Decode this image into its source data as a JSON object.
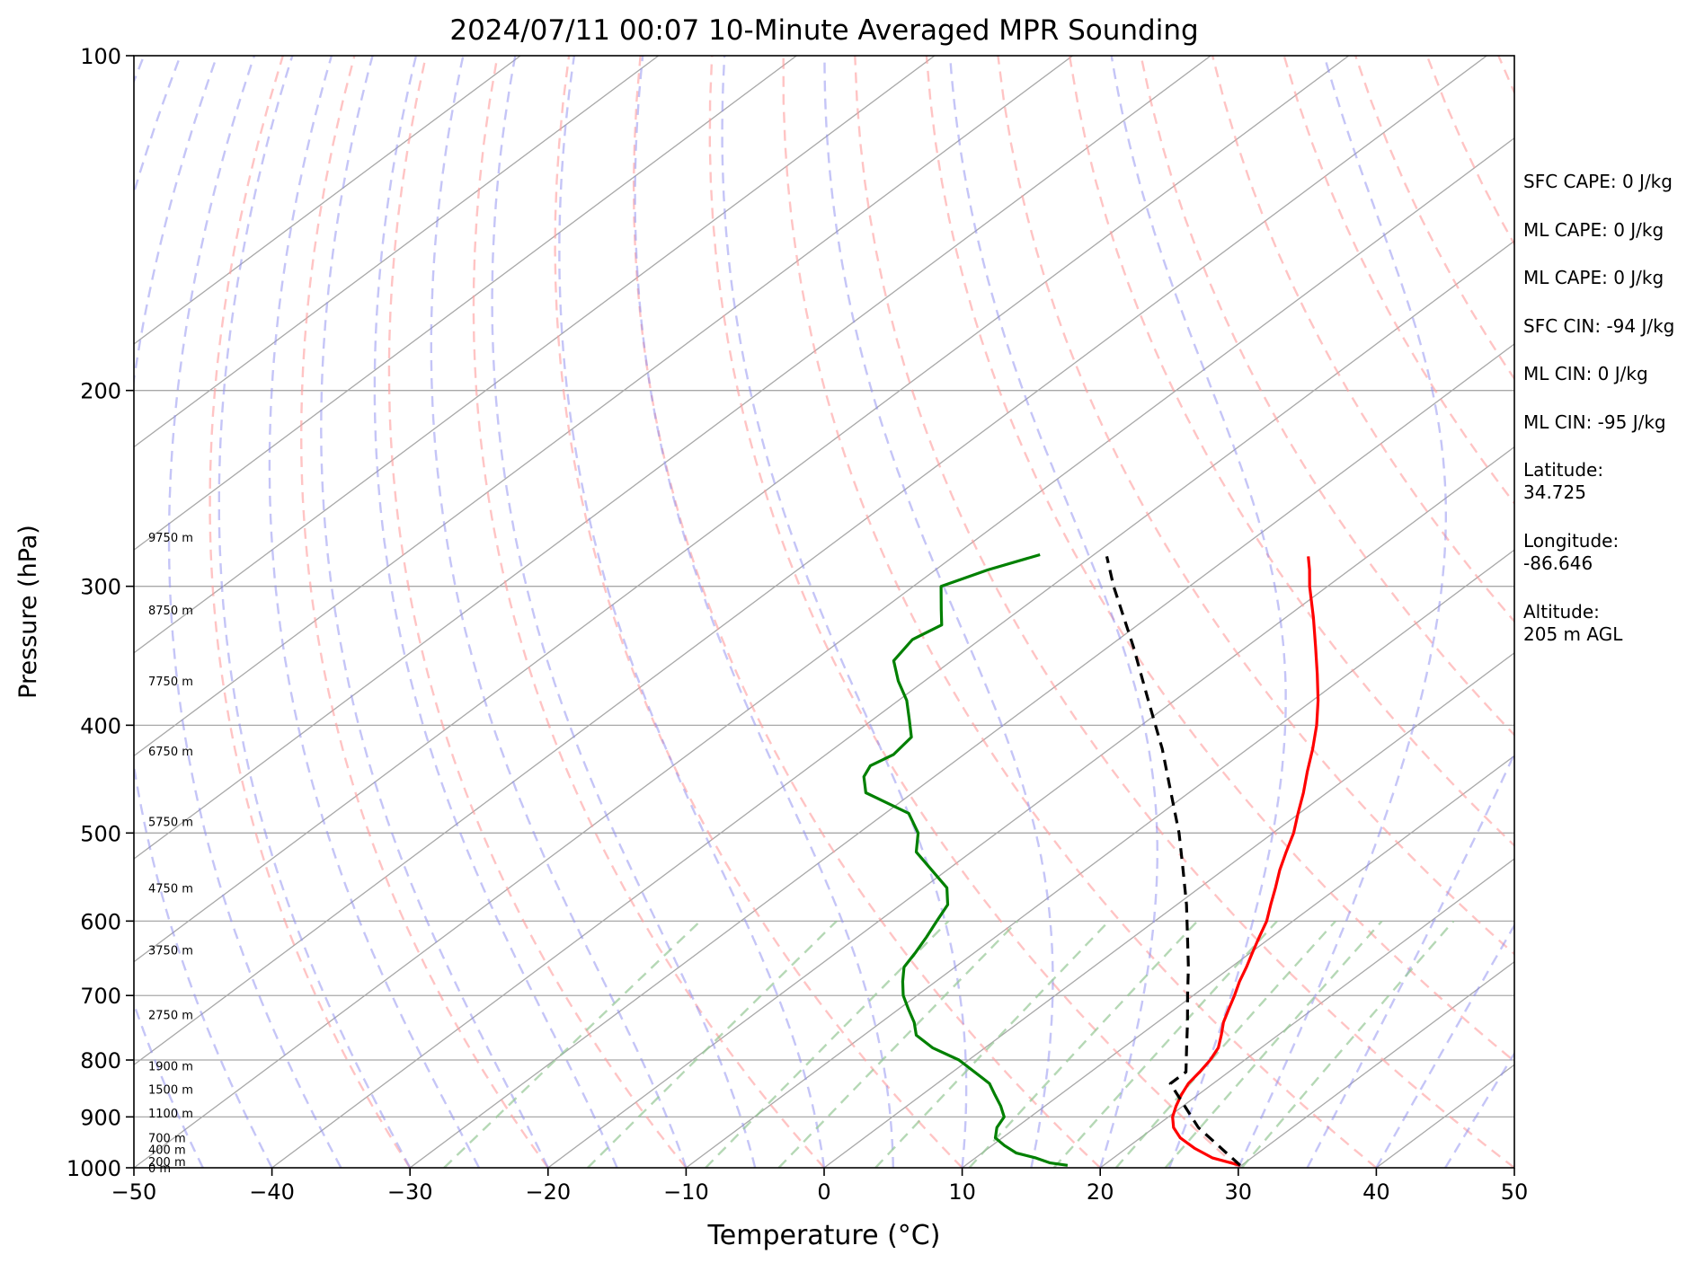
{
  "chart_data": {
    "type": "line",
    "title": "2024/07/11 00:07 10-Minute Averaged MPR Sounding",
    "xlabel": "Temperature (°C)",
    "ylabel": "Pressure (hPa)",
    "xlim": [
      -50,
      50
    ],
    "ylim": [
      1000,
      100
    ],
    "y_scale": "log",
    "grid": true,
    "x_ticks": [
      -50,
      -40,
      -30,
      -20,
      -10,
      0,
      10,
      20,
      30,
      40,
      50
    ],
    "x_tick_labels": [
      "−50",
      "−40",
      "−30",
      "−20",
      "−10",
      "0",
      "10",
      "20",
      "30",
      "40",
      "50"
    ],
    "y_ticks": [
      100,
      200,
      300,
      400,
      500,
      600,
      700,
      800,
      900,
      1000
    ],
    "y_tick_labels": [
      "100",
      "200",
      "300",
      "400",
      "500",
      "600",
      "700",
      "800",
      "900",
      "1000"
    ],
    "skew_t": true,
    "series": [
      {
        "role": "temperature",
        "color": "#ff0000",
        "style": "solid",
        "points": [
          [
            995,
            29.9
          ],
          [
            980,
            27.2
          ],
          [
            960,
            24.9
          ],
          [
            940,
            22.9
          ],
          [
            920,
            21.4
          ],
          [
            900,
            20.3
          ],
          [
            880,
            19.5
          ],
          [
            860,
            18.8
          ],
          [
            840,
            18.2
          ],
          [
            820,
            17.9
          ],
          [
            800,
            17.5
          ],
          [
            780,
            16.9
          ],
          [
            760,
            15.9
          ],
          [
            740,
            14.8
          ],
          [
            720,
            13.9
          ],
          [
            700,
            13.0
          ],
          [
            680,
            12.0
          ],
          [
            660,
            11.1
          ],
          [
            640,
            10.1
          ],
          [
            620,
            9.1
          ],
          [
            600,
            8.1
          ],
          [
            580,
            6.8
          ],
          [
            560,
            5.5
          ],
          [
            540,
            4.1
          ],
          [
            520,
            2.8
          ],
          [
            500,
            1.5
          ],
          [
            480,
            -0.1
          ],
          [
            460,
            -1.7
          ],
          [
            440,
            -3.5
          ],
          [
            420,
            -5.3
          ],
          [
            400,
            -7.3
          ],
          [
            380,
            -9.6
          ],
          [
            360,
            -12.2
          ],
          [
            340,
            -15.0
          ],
          [
            320,
            -18.0
          ],
          [
            300,
            -21.3
          ],
          [
            290,
            -22.9
          ],
          [
            282,
            -24.3
          ]
        ]
      },
      {
        "role": "dewpoint",
        "color": "#008000",
        "style": "solid",
        "points": [
          [
            995,
            17.4
          ],
          [
            990,
            15.9
          ],
          [
            980,
            14.4
          ],
          [
            970,
            12.5
          ],
          [
            955,
            10.9
          ],
          [
            940,
            9.5
          ],
          [
            920,
            8.6
          ],
          [
            900,
            8.1
          ],
          [
            880,
            6.8
          ],
          [
            860,
            5.3
          ],
          [
            840,
            3.8
          ],
          [
            830,
            2.7
          ],
          [
            800,
            -0.7
          ],
          [
            780,
            -3.8
          ],
          [
            760,
            -6.2
          ],
          [
            740,
            -7.6
          ],
          [
            720,
            -9.3
          ],
          [
            700,
            -11.0
          ],
          [
            680,
            -12.4
          ],
          [
            660,
            -13.7
          ],
          [
            640,
            -14.3
          ],
          [
            620,
            -15.0
          ],
          [
            600,
            -15.8
          ],
          [
            580,
            -16.6
          ],
          [
            560,
            -18.3
          ],
          [
            540,
            -21.1
          ],
          [
            520,
            -24.0
          ],
          [
            500,
            -25.7
          ],
          [
            480,
            -28.3
          ],
          [
            460,
            -33.4
          ],
          [
            445,
            -35.1
          ],
          [
            435,
            -35.7
          ],
          [
            425,
            -35.1
          ],
          [
            410,
            -35.5
          ],
          [
            395,
            -37.4
          ],
          [
            380,
            -39.4
          ],
          [
            365,
            -41.9
          ],
          [
            350,
            -44.2
          ],
          [
            335,
            -44.9
          ],
          [
            325,
            -44.2
          ],
          [
            315,
            -45.7
          ],
          [
            300,
            -48.0
          ],
          [
            290,
            -46.2
          ],
          [
            281,
            -43.9
          ]
        ]
      },
      {
        "role": "parcel",
        "color": "#000000",
        "style": "dashed",
        "points": [
          [
            995,
            29.9
          ],
          [
            920,
            23.2
          ],
          [
            840,
            16.9
          ],
          [
            820,
            16.9
          ],
          [
            780,
            14.6
          ],
          [
            740,
            12.2
          ],
          [
            700,
            9.6
          ],
          [
            660,
            6.9
          ],
          [
            620,
            3.9
          ],
          [
            580,
            0.7
          ],
          [
            540,
            -2.9
          ],
          [
            500,
            -6.8
          ],
          [
            460,
            -11.3
          ],
          [
            420,
            -16.2
          ],
          [
            380,
            -21.9
          ],
          [
            340,
            -28.2
          ],
          [
            300,
            -35.5
          ],
          [
            282,
            -38.9
          ]
        ]
      }
    ],
    "height_labels": [
      {
        "p": 1000,
        "text": "0 m"
      },
      {
        "p": 987,
        "text": "200 m"
      },
      {
        "p": 963,
        "text": "400 m"
      },
      {
        "p": 940,
        "text": "700 m"
      },
      {
        "p": 893,
        "text": "1100 m"
      },
      {
        "p": 850,
        "text": "1500 m"
      },
      {
        "p": 810,
        "text": "1900 m"
      },
      {
        "p": 728,
        "text": "2750 m"
      },
      {
        "p": 637,
        "text": "3750 m"
      },
      {
        "p": 560,
        "text": "4750 m"
      },
      {
        "p": 488,
        "text": "5750 m"
      },
      {
        "p": 422,
        "text": "6750 m"
      },
      {
        "p": 365,
        "text": "7750 m"
      },
      {
        "p": 315,
        "text": "8750 m"
      },
      {
        "p": 271,
        "text": "9750 m"
      }
    ]
  },
  "stats": [
    "SFC CAPE: 0 J/kg",
    "ML CAPE: 0 J/kg",
    "ML CAPE: 0 J/kg",
    "SFC CIN: -94 J/kg",
    "ML CIN: 0 J/kg",
    "ML CIN: -95 J/kg",
    "Latitude:\n34.725",
    "Longitude:\n-86.646",
    "Altitude:\n205 m AGL"
  ],
  "colors": {
    "dry_adiabat": "#ff9c9c",
    "moist_adiabat": "#8c8cf0",
    "mixing_ratio": "#96c896",
    "isotherm": "#a8a8a8",
    "isobar": "#a8a8a8"
  }
}
